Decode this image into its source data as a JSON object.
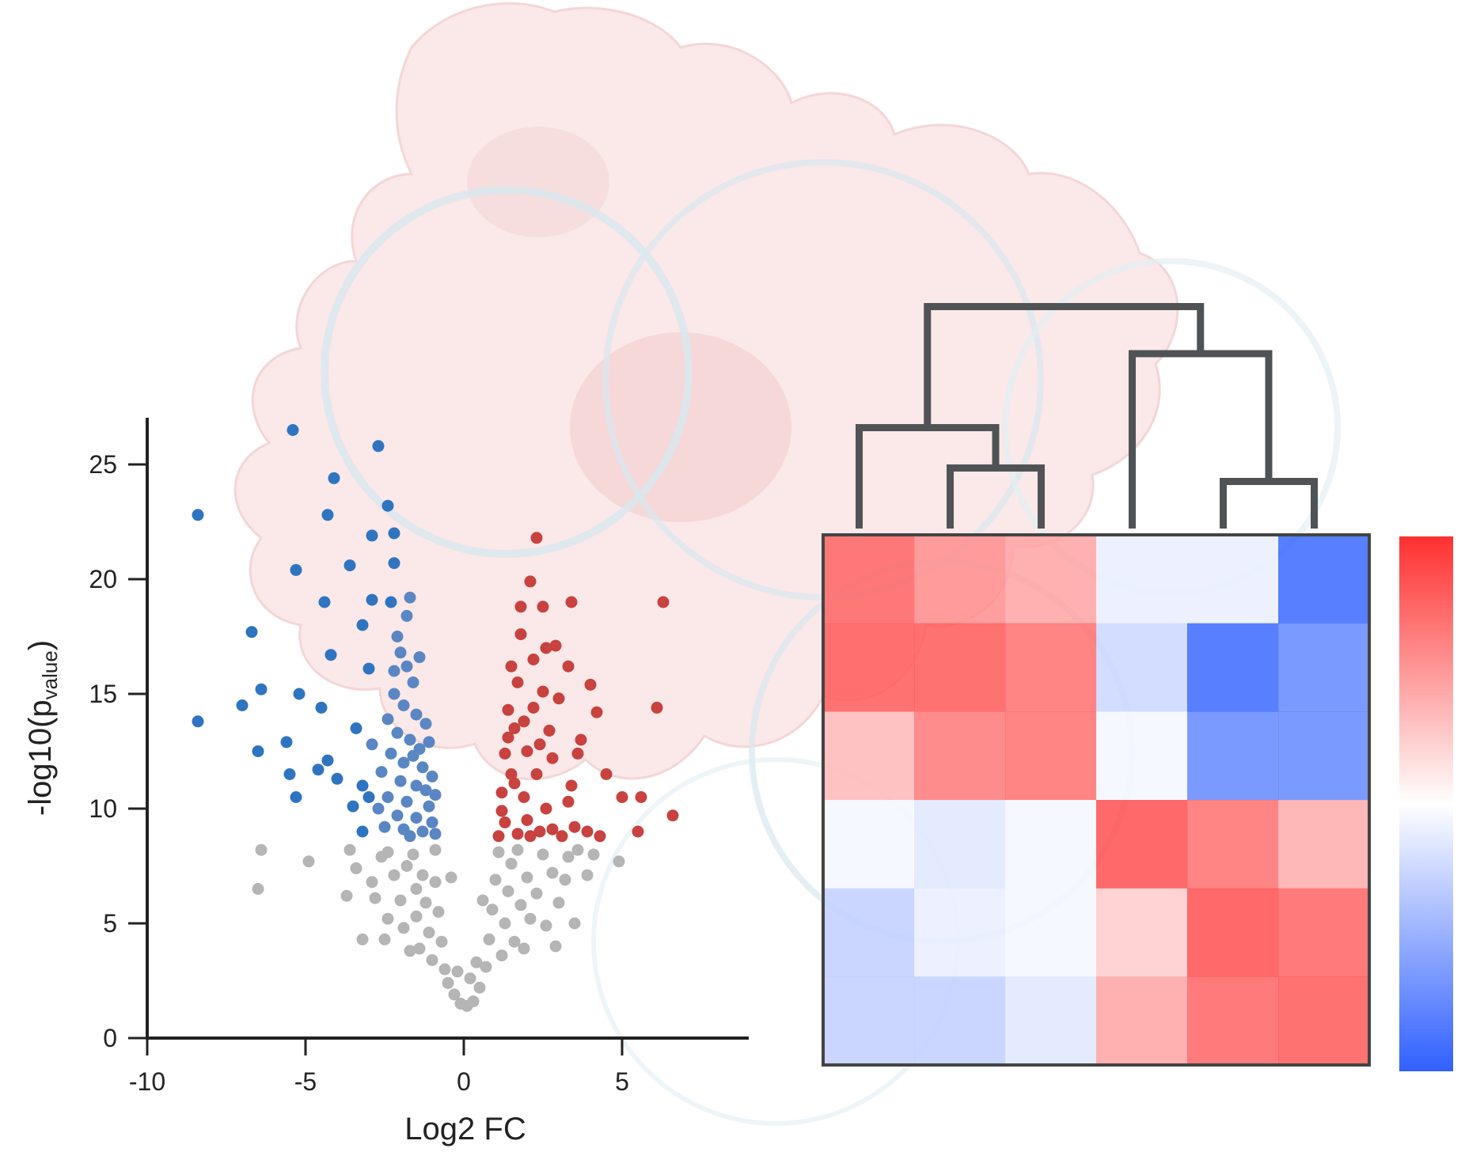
{
  "colors": {
    "up": "#c8423f",
    "down": "#2f74c0",
    "down_dense": "#5b86c4",
    "ns": "#b5b5b5",
    "axis": "#222222",
    "dendrogram": "#4f5356",
    "heatmap_border": "#444444",
    "background_cell_fill": "#fbe6e6",
    "background_ring": "#d4e6ee",
    "scale_high": "#ff3030",
    "scale_mid": "#ffffff",
    "scale_low": "#3060ff"
  },
  "chart_data": [
    {
      "type": "scatter",
      "subtype": "volcano",
      "xlabel": "Log2 FC",
      "ylabel_base": "-log10(p",
      "ylabel_sub": "value",
      "ylabel_close": ")",
      "xlim": [
        -10,
        9
      ],
      "ylim": [
        0,
        27
      ],
      "x_ticks": [
        -10,
        -5,
        0,
        5
      ],
      "x_tick_labels": [
        "-10",
        "-5",
        "0",
        "5"
      ],
      "y_ticks": [
        0,
        5,
        10,
        15,
        20,
        25
      ],
      "y_tick_labels": [
        "0",
        "5",
        "10",
        "15",
        "20",
        "25"
      ],
      "grid": false,
      "series": [
        {
          "group": "down",
          "points": [
            [
              -8.4,
              22.8
            ],
            [
              -8.4,
              13.8
            ],
            [
              -6.7,
              17.7
            ],
            [
              -6.5,
              12.5
            ],
            [
              -6.4,
              15.2
            ],
            [
              -5.6,
              12.9
            ],
            [
              -5.5,
              11.5
            ],
            [
              -5.4,
              26.5
            ],
            [
              -5.3,
              20.4
            ],
            [
              -5.2,
              15.0
            ],
            [
              -5.3,
              10.5
            ],
            [
              -4.5,
              14.4
            ],
            [
              -4.3,
              12.1
            ],
            [
              -4.0,
              11.3
            ],
            [
              -4.4,
              19.0
            ],
            [
              -4.2,
              16.7
            ],
            [
              -4.3,
              22.8
            ],
            [
              -4.1,
              24.4
            ],
            [
              -3.6,
              20.6
            ],
            [
              -3.4,
              13.5
            ],
            [
              -3.2,
              11.0
            ],
            [
              -3.5,
              10.1
            ],
            [
              -2.9,
              19.1
            ],
            [
              -3.0,
              16.1
            ],
            [
              -2.7,
              25.8
            ],
            [
              -3.0,
              10.5
            ],
            [
              -2.4,
              23.2
            ],
            [
              -2.2,
              22.0
            ],
            [
              -2.2,
              20.7
            ],
            [
              -2.3,
              19.0
            ],
            [
              -2.9,
              21.9
            ],
            [
              -3.2,
              18.0
            ],
            [
              -7.0,
              14.5
            ],
            [
              -4.6,
              11.7
            ],
            [
              -3.2,
              9.0
            ]
          ]
        },
        {
          "group": "down_dense",
          "points": [
            [
              -2.1,
              17.5
            ],
            [
              -2.0,
              16.8
            ],
            [
              -1.8,
              16.2
            ],
            [
              -1.6,
              15.5
            ],
            [
              -2.2,
              15.0
            ],
            [
              -1.9,
              14.5
            ],
            [
              -1.5,
              14.1
            ],
            [
              -2.4,
              13.9
            ],
            [
              -2.1,
              13.3
            ],
            [
              -1.7,
              13.0
            ],
            [
              -1.4,
              12.6
            ],
            [
              -2.3,
              12.4
            ],
            [
              -1.9,
              12.0
            ],
            [
              -1.3,
              11.8
            ],
            [
              -2.6,
              11.6
            ],
            [
              -2.0,
              11.2
            ],
            [
              -1.5,
              11.0
            ],
            [
              -1.2,
              10.8
            ],
            [
              -2.4,
              10.5
            ],
            [
              -1.8,
              10.3
            ],
            [
              -1.1,
              10.1
            ],
            [
              -2.7,
              10.0
            ],
            [
              -2.1,
              9.7
            ],
            [
              -1.5,
              9.6
            ],
            [
              -1.0,
              9.4
            ],
            [
              -2.5,
              9.2
            ],
            [
              -1.9,
              9.1
            ],
            [
              -1.3,
              9.0
            ],
            [
              -0.9,
              8.9
            ],
            [
              -1.7,
              8.8
            ],
            [
              -1.2,
              13.7
            ],
            [
              -1.6,
              12.3
            ],
            [
              -2.2,
              16.0
            ],
            [
              -1.8,
              18.4
            ],
            [
              -1.7,
              19.2
            ],
            [
              -1.4,
              16.6
            ],
            [
              -1.1,
              12.9
            ],
            [
              -0.9,
              10.6
            ],
            [
              -2.9,
              12.8
            ],
            [
              -1.0,
              11.4
            ]
          ]
        },
        {
          "group": "up",
          "points": [
            [
              2.3,
              21.8
            ],
            [
              2.1,
              19.9
            ],
            [
              1.8,
              18.8
            ],
            [
              2.5,
              18.8
            ],
            [
              3.4,
              19.0
            ],
            [
              6.3,
              19.0
            ],
            [
              1.8,
              17.6
            ],
            [
              2.6,
              17.0
            ],
            [
              2.9,
              17.1
            ],
            [
              1.5,
              16.2
            ],
            [
              2.2,
              16.5
            ],
            [
              3.3,
              16.2
            ],
            [
              4.0,
              15.4
            ],
            [
              1.7,
              15.5
            ],
            [
              2.5,
              15.1
            ],
            [
              1.4,
              14.3
            ],
            [
              2.2,
              14.4
            ],
            [
              3.0,
              14.8
            ],
            [
              4.2,
              14.2
            ],
            [
              6.1,
              14.4
            ],
            [
              1.6,
              13.5
            ],
            [
              2.7,
              13.4
            ],
            [
              3.7,
              13.0
            ],
            [
              1.3,
              12.4
            ],
            [
              2.0,
              12.5
            ],
            [
              2.8,
              12.2
            ],
            [
              3.6,
              12.4
            ],
            [
              1.5,
              11.5
            ],
            [
              2.3,
              11.5
            ],
            [
              3.4,
              11.0
            ],
            [
              4.5,
              11.5
            ],
            [
              1.2,
              10.7
            ],
            [
              1.9,
              10.5
            ],
            [
              2.6,
              10.0
            ],
            [
              3.3,
              10.3
            ],
            [
              5.0,
              10.5
            ],
            [
              5.6,
              10.5
            ],
            [
              6.6,
              9.7
            ],
            [
              1.3,
              9.4
            ],
            [
              2.0,
              9.5
            ],
            [
              2.8,
              9.1
            ],
            [
              3.5,
              9.2
            ],
            [
              4.3,
              8.8
            ],
            [
              5.5,
              9.0
            ],
            [
              1.1,
              8.8
            ],
            [
              1.7,
              8.9
            ],
            [
              2.4,
              9.0
            ],
            [
              3.1,
              8.8
            ],
            [
              3.9,
              9.0
            ],
            [
              1.4,
              13.1
            ],
            [
              1.6,
              11.1
            ],
            [
              1.9,
              13.8
            ],
            [
              2.4,
              12.8
            ],
            [
              1.2,
              9.9
            ],
            [
              2.1,
              8.8
            ]
          ]
        },
        {
          "group": "ns",
          "points": [
            [
              -6.4,
              8.2
            ],
            [
              -6.5,
              6.5
            ],
            [
              -4.9,
              7.7
            ],
            [
              -3.6,
              8.2
            ],
            [
              -3.7,
              6.2
            ],
            [
              -3.4,
              7.4
            ],
            [
              -2.9,
              6.8
            ],
            [
              -2.6,
              7.9
            ],
            [
              -2.4,
              8.1
            ],
            [
              -2.2,
              7.1
            ],
            [
              -2.4,
              5.2
            ],
            [
              -2.5,
              4.3
            ],
            [
              -2.0,
              6.0
            ],
            [
              -1.8,
              7.5
            ],
            [
              -1.9,
              4.8
            ],
            [
              -1.6,
              8.0
            ],
            [
              -1.5,
              6.5
            ],
            [
              -1.5,
              5.3
            ],
            [
              -1.4,
              3.9
            ],
            [
              -1.3,
              7.1
            ],
            [
              -1.2,
              5.9
            ],
            [
              -1.1,
              4.6
            ],
            [
              -1.0,
              3.4
            ],
            [
              -0.9,
              8.2
            ],
            [
              -0.9,
              6.8
            ],
            [
              -0.8,
              5.5
            ],
            [
              -0.7,
              4.2
            ],
            [
              -0.6,
              3.0
            ],
            [
              -0.5,
              2.4
            ],
            [
              -0.3,
              1.9
            ],
            [
              -0.1,
              1.5
            ],
            [
              0.1,
              1.4
            ],
            [
              0.3,
              1.6
            ],
            [
              0.5,
              2.2
            ],
            [
              0.7,
              3.1
            ],
            [
              0.8,
              4.3
            ],
            [
              0.9,
              5.6
            ],
            [
              1.0,
              6.9
            ],
            [
              1.1,
              8.1
            ],
            [
              1.2,
              3.6
            ],
            [
              1.3,
              5.0
            ],
            [
              1.4,
              6.4
            ],
            [
              1.5,
              7.6
            ],
            [
              1.6,
              4.2
            ],
            [
              1.7,
              8.2
            ],
            [
              1.8,
              5.8
            ],
            [
              1.9,
              3.9
            ],
            [
              2.0,
              7.0
            ],
            [
              2.1,
              5.2
            ],
            [
              2.3,
              6.3
            ],
            [
              2.5,
              8.0
            ],
            [
              2.6,
              4.9
            ],
            [
              2.8,
              7.2
            ],
            [
              3.0,
              5.9
            ],
            [
              3.2,
              6.9
            ],
            [
              3.3,
              7.9
            ],
            [
              3.6,
              8.2
            ],
            [
              3.9,
              7.1
            ],
            [
              4.1,
              8.0
            ],
            [
              4.9,
              7.7
            ],
            [
              -3.2,
              4.3
            ],
            [
              -2.8,
              6.1
            ],
            [
              -0.4,
              7.0
            ],
            [
              0.6,
              6.0
            ],
            [
              2.9,
              4.0
            ],
            [
              0.2,
              2.6
            ],
            [
              -0.2,
              2.9
            ],
            [
              0.4,
              3.3
            ],
            [
              -1.7,
              3.8
            ],
            [
              3.5,
              5.0
            ]
          ]
        }
      ]
    },
    {
      "type": "heatmap",
      "rows": 6,
      "cols": 6,
      "values": [
        [
          0.75,
          0.55,
          0.45,
          -0.1,
          -0.1,
          -0.95
        ],
        [
          0.8,
          0.8,
          0.7,
          -0.25,
          -0.95,
          -0.75
        ],
        [
          0.35,
          0.65,
          0.7,
          -0.05,
          -0.75,
          -0.75
        ],
        [
          -0.05,
          -0.15,
          -0.05,
          0.85,
          0.7,
          0.4
        ],
        [
          -0.3,
          -0.1,
          -0.05,
          0.25,
          0.85,
          0.75
        ],
        [
          -0.3,
          -0.3,
          -0.15,
          0.45,
          0.75,
          0.8
        ]
      ],
      "dendrogram": [
        {
          "x1": 5,
          "x2": 4,
          "h": 0.35
        },
        {
          "x1": 1,
          "x2": 2,
          "h": 0.45
        },
        {
          "x1": 0,
          "x2": "1,2",
          "h": 0.75
        },
        {
          "x1": 3,
          "x2": "4,5",
          "h": 1.3
        },
        {
          "x1": "0,1,2",
          "x2": "3,4,5",
          "h": 1.65
        }
      ],
      "color_scale": {
        "low": -1,
        "mid": 0,
        "high": 1
      }
    }
  ]
}
